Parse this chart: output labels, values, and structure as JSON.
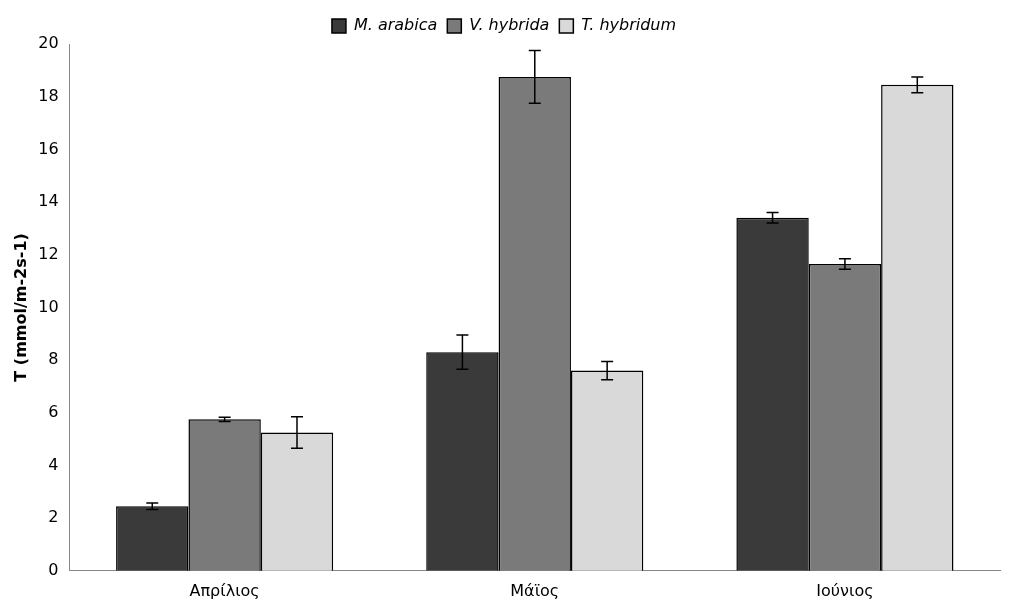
{
  "chart_data": {
    "type": "bar",
    "ylabel": "T (mmol/m-2s-1)",
    "categories": [
      "Απρίλιος",
      "Μάϊος",
      "Ιούνιος"
    ],
    "series": [
      {
        "name": "M. arabica",
        "color": "#3a3a3a",
        "values": [
          2.45,
          8.3,
          13.4
        ],
        "errors": [
          0.12,
          0.65,
          0.2
        ]
      },
      {
        "name": "V. hybrida",
        "color": "#7a7a7a",
        "values": [
          5.75,
          18.75,
          11.65
        ],
        "errors": [
          0.08,
          1.0,
          0.2
        ]
      },
      {
        "name": "T. hybridum",
        "color": "#d9d9d9",
        "values": [
          5.25,
          7.6,
          18.45
        ],
        "errors": [
          0.6,
          0.35,
          0.3
        ]
      }
    ],
    "ylim": [
      0,
      20
    ],
    "yticks": [
      0,
      2,
      4,
      6,
      8,
      10,
      12,
      14,
      16,
      18,
      20
    ],
    "grid": false,
    "legend": "top"
  }
}
